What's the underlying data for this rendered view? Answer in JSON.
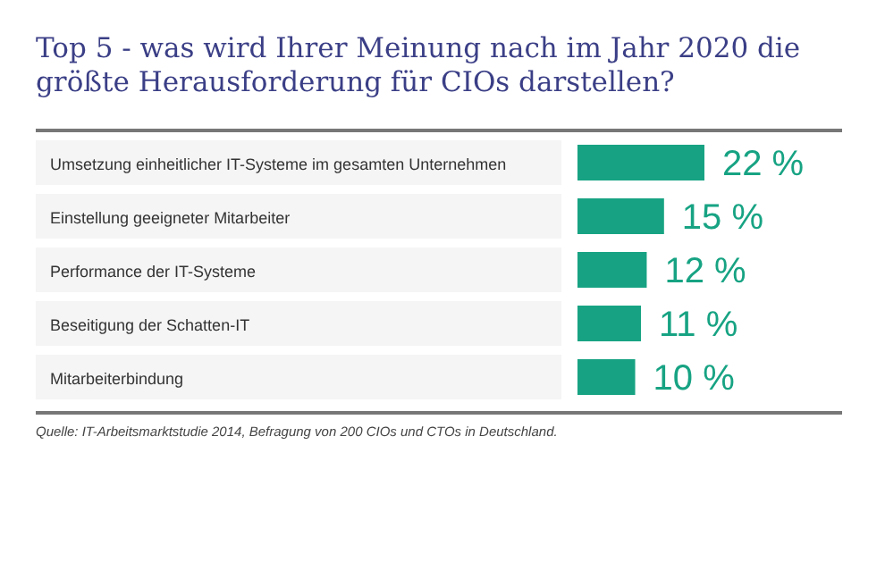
{
  "chart_data": {
    "type": "bar",
    "orientation": "horizontal",
    "title": "Top 5 - was wird Ihrer Meinung nach im Jahr 2020 die größte Herausforderung für CIOs darstellen?",
    "categories": [
      "Umsetzung einheitlicher IT-Systeme im gesamten Unternehmen",
      "Einstellung geeigneter Mitarbeiter",
      "Performance der IT-Systeme",
      "Beseitigung der Schatten-IT",
      "Mitarbeiterbindung"
    ],
    "values": [
      22,
      15,
      12,
      11,
      10
    ],
    "value_labels": [
      "22 %",
      "15 %",
      "12 %",
      "11 %",
      "10 %"
    ],
    "color": "#17a383",
    "annotations": [
      "Quelle: IT-Arbeitsmarktstudie 2014, Befragung von 200 CIOs und CTOs in Deutschland."
    ]
  }
}
